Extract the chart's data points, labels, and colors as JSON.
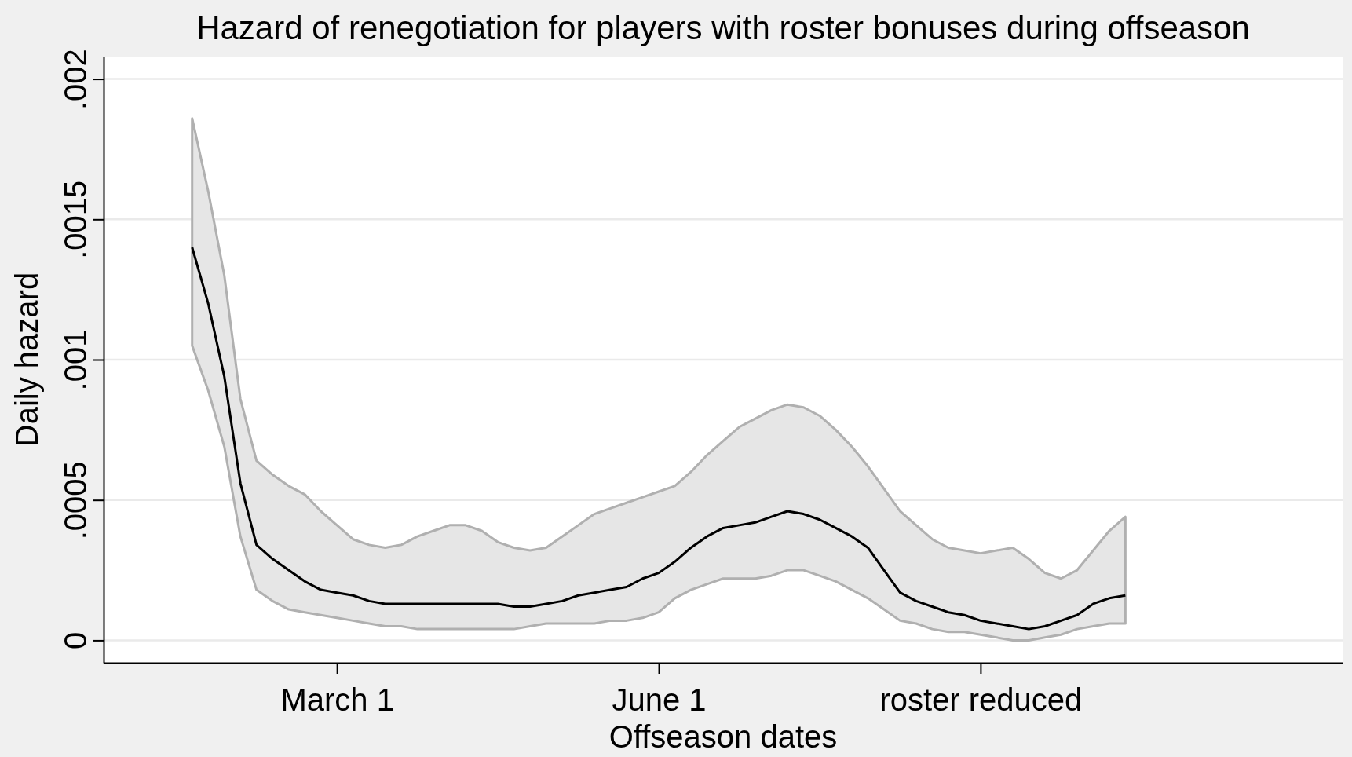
{
  "chart_data": {
    "type": "line",
    "title": "Hazard of renegotiation for players with roster bonuses during offseason",
    "xlabel": "Offseason dates",
    "ylabel": "Daily hazard",
    "categories": [
      null,
      null,
      null,
      null,
      null,
      null,
      null,
      null,
      null,
      null,
      null,
      null,
      null,
      null,
      "March 1",
      null,
      null,
      null,
      null,
      null,
      null,
      null,
      null,
      null,
      null,
      null,
      null,
      null,
      null,
      null,
      null,
      null,
      null,
      null,
      "June 1",
      null,
      null,
      null,
      null,
      null,
      null,
      null,
      null,
      null,
      null,
      null,
      null,
      null,
      null,
      null,
      null,
      null,
      null,
      null,
      "roster reduced",
      null,
      null,
      null,
      null,
      null,
      null,
      null,
      null,
      null,
      null,
      null,
      null,
      null,
      null,
      null,
      null,
      null,
      null,
      null,
      null,
      null,
      null
    ],
    "series": [
      {
        "color": "#000000",
        "values": [
          null,
          null,
          null,
          null,
          null,
          0.0014,
          0.0012,
          0.00094,
          0.00056,
          0.00034,
          0.00029,
          0.00025,
          0.00021,
          0.00018,
          0.00017,
          0.00016,
          0.00014,
          0.00013,
          0.00013,
          0.00013,
          0.00013,
          0.00013,
          0.00013,
          0.00013,
          0.00013,
          0.00012,
          0.00012,
          0.00013,
          0.00014,
          0.00016,
          0.00017,
          0.00018,
          0.00019,
          0.00022,
          0.00024,
          0.00028,
          0.00033,
          0.00037,
          0.0004,
          0.00041,
          0.00042,
          0.00044,
          0.00046,
          0.00045,
          0.00043,
          0.0004,
          0.00037,
          0.00033,
          0.00025,
          0.00017,
          0.00014,
          0.00012,
          0.0001,
          9e-05,
          7e-05,
          6e-05,
          5e-05,
          4e-05,
          5e-05,
          7e-05,
          9e-05,
          0.00013,
          0.00015,
          0.00016,
          null,
          null,
          null,
          null,
          null,
          null,
          null,
          null,
          null,
          null,
          null,
          null,
          null
        ],
        "upper": [
          null,
          null,
          null,
          null,
          null,
          0.00186,
          0.0016,
          0.0013,
          0.00086,
          0.00064,
          0.00059,
          0.00055,
          0.00052,
          0.00046,
          0.00041,
          0.00036,
          0.00034,
          0.00033,
          0.00034,
          0.00037,
          0.00039,
          0.00041,
          0.00041,
          0.00039,
          0.00035,
          0.00033,
          0.00032,
          0.00033,
          0.00037,
          0.00041,
          0.00045,
          0.00047,
          0.00049,
          0.00051,
          0.00053,
          0.00055,
          0.0006,
          0.00066,
          0.00071,
          0.00076,
          0.00079,
          0.00082,
          0.00084,
          0.00083,
          0.0008,
          0.00075,
          0.00069,
          0.00062,
          0.00054,
          0.00046,
          0.00041,
          0.00036,
          0.00033,
          0.00032,
          0.00031,
          0.00032,
          0.00033,
          0.00029,
          0.00024,
          0.00022,
          0.00025,
          0.00032,
          0.00039,
          0.00044,
          null,
          null,
          null,
          null,
          null,
          null,
          null,
          null,
          null,
          null,
          null,
          null,
          null
        ],
        "lower": [
          null,
          null,
          null,
          null,
          null,
          0.00105,
          0.00089,
          0.00069,
          0.00037,
          0.00018,
          0.00014,
          0.00011,
          0.0001,
          9e-05,
          8e-05,
          7e-05,
          6e-05,
          5e-05,
          5e-05,
          4e-05,
          4e-05,
          4e-05,
          4e-05,
          4e-05,
          4e-05,
          4e-05,
          5e-05,
          6e-05,
          6e-05,
          6e-05,
          6e-05,
          7e-05,
          7e-05,
          8e-05,
          0.0001,
          0.00015,
          0.00018,
          0.0002,
          0.00022,
          0.00022,
          0.00022,
          0.00023,
          0.00025,
          0.00025,
          0.00023,
          0.00021,
          0.00018,
          0.00015,
          0.00011,
          7e-05,
          6e-05,
          4e-05,
          3e-05,
          3e-05,
          2e-05,
          1e-05,
          0,
          0,
          1e-05,
          2e-05,
          4e-05,
          5e-05,
          6e-05,
          6e-05,
          null,
          null,
          null,
          null,
          null,
          null,
          null,
          null,
          null,
          null,
          null,
          null,
          null
        ]
      }
    ],
    "ylim": [
      -8e-05,
      0.00208
    ],
    "yticks": [
      {
        "value": 0,
        "label": "0"
      },
      {
        "value": 0.0005,
        "label": ".0005"
      },
      {
        "value": 0.001,
        "label": ".001"
      },
      {
        "value": 0.0015,
        "label": ".0015"
      },
      {
        "value": 0.002,
        "label": ".002"
      }
    ],
    "grid": "y",
    "marker": "none",
    "line_style": "solid"
  }
}
